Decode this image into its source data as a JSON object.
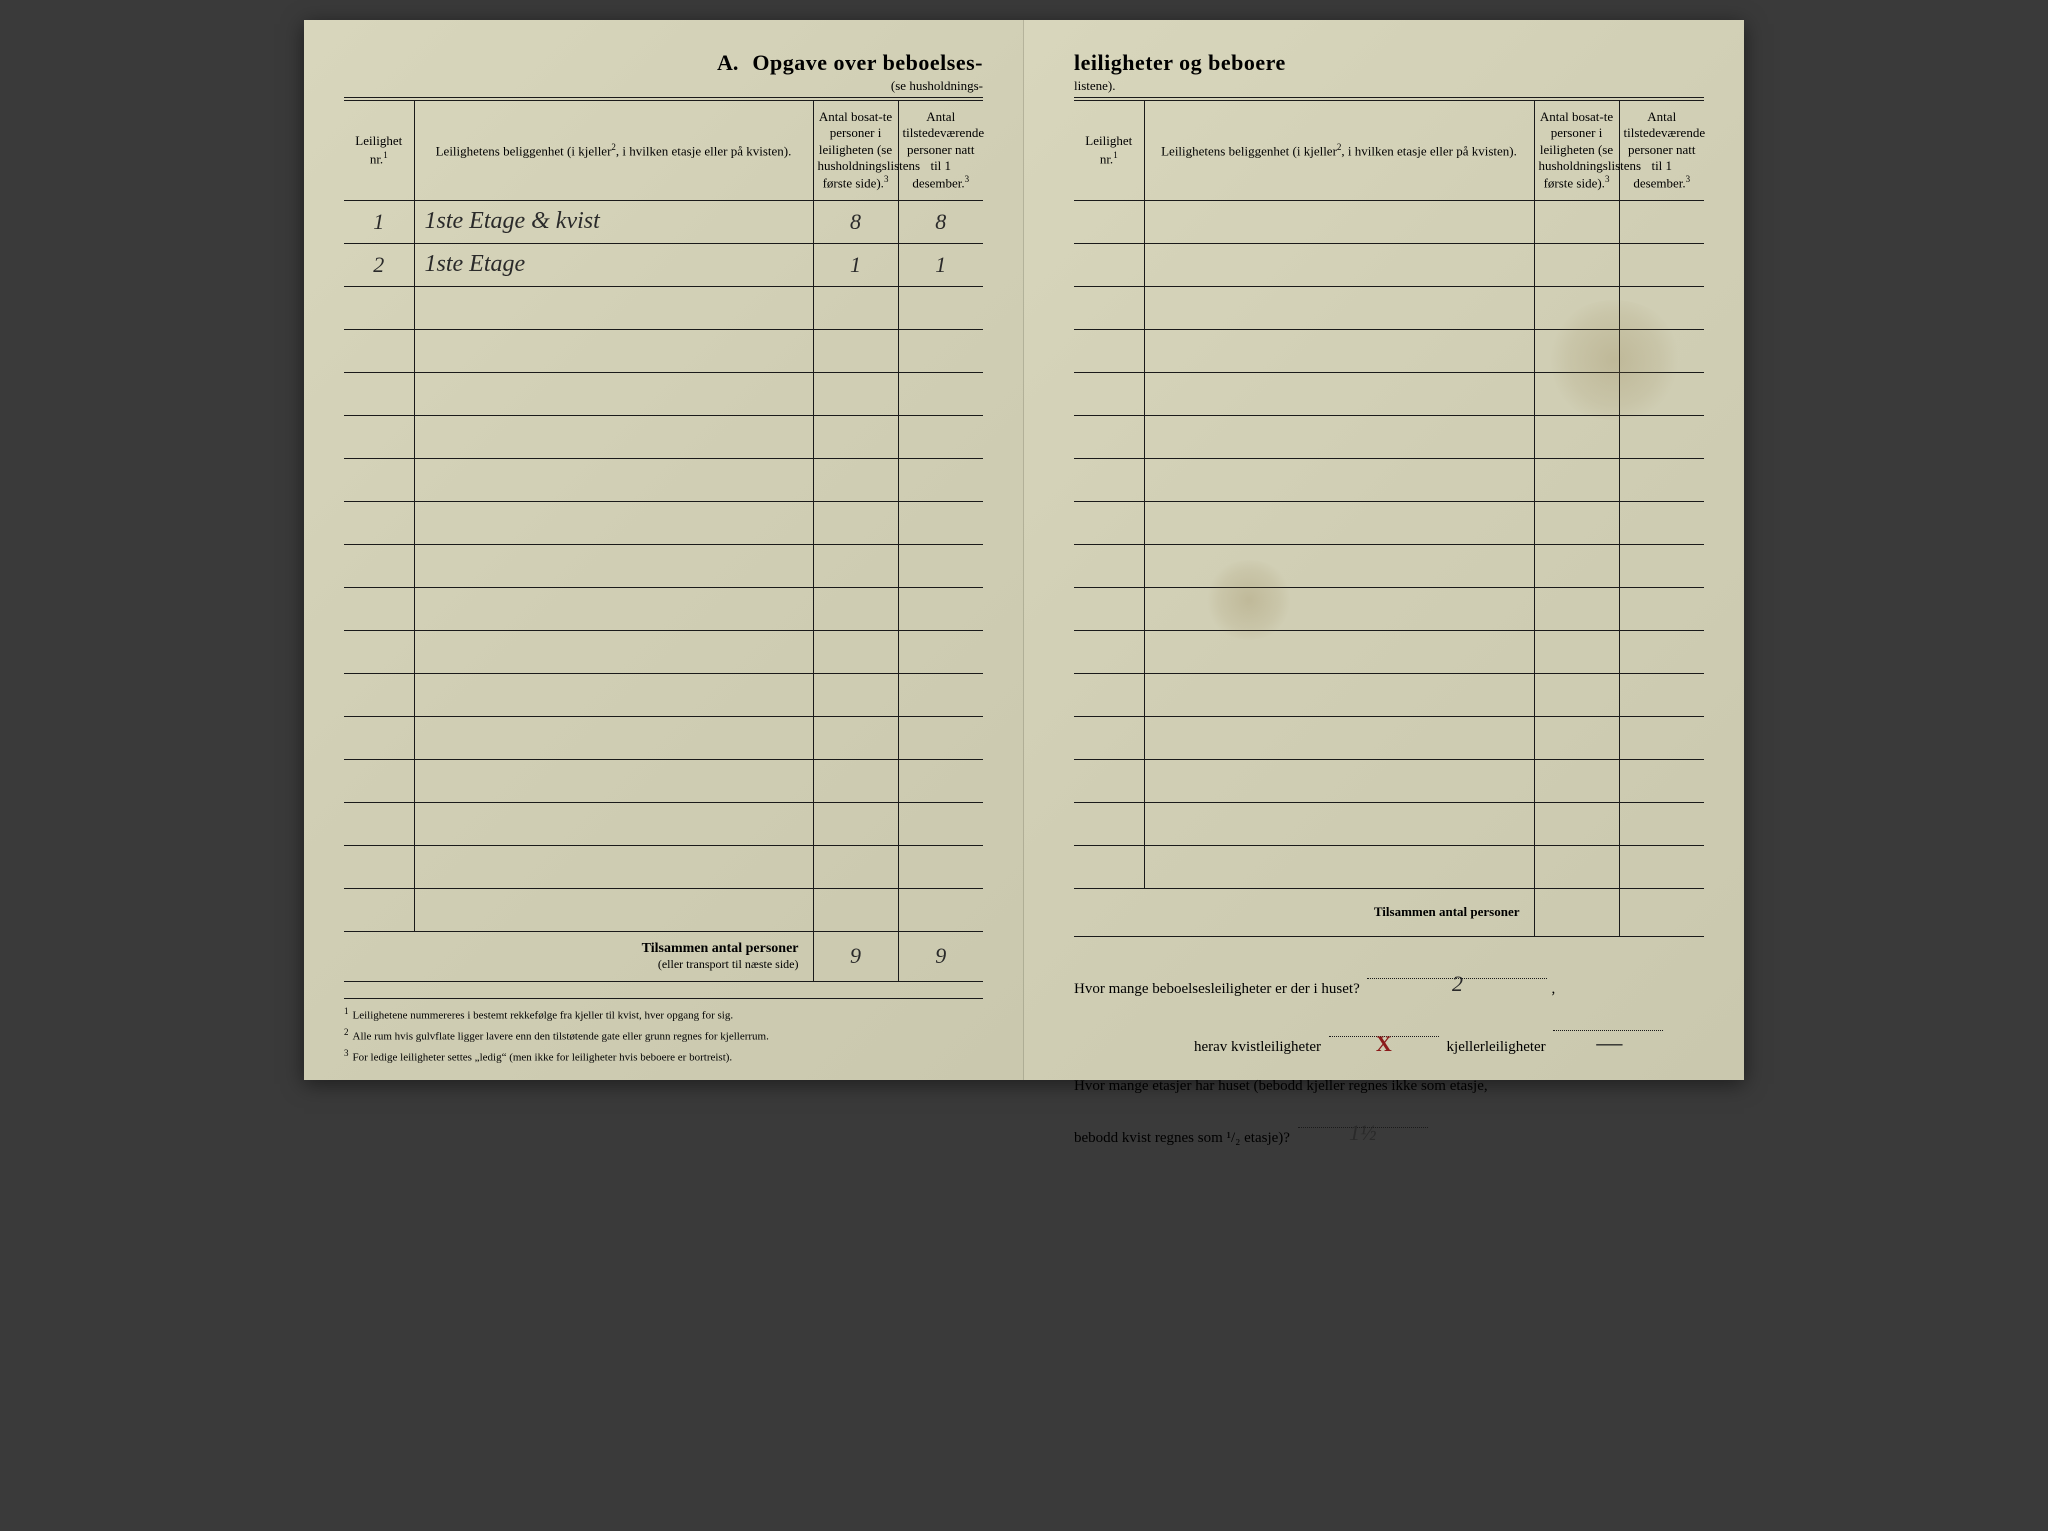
{
  "header": {
    "letter": "A.",
    "title_left": "Opgave over beboelses-",
    "subtitle_left": "(se husholdnings-",
    "title_right": "leiligheter og beboere",
    "subtitle_right": "listene)."
  },
  "columns": {
    "nr": "Leilighet nr.",
    "nr_sup": "1",
    "loc": "Leilighetens beliggenhet (i kjeller",
    "loc_sup": "2",
    "loc_after": ", i hvilken etasje eller på kvisten).",
    "n1": "Antal bosat-te personer i leiligheten (se husholdningslistens første side).",
    "n1_sup": "3",
    "n2": "Antal tilstedeværende personer natt til 1 desember.",
    "n2_sup": "3"
  },
  "rows_left": [
    {
      "nr": "1",
      "loc": "1ste Etage & kvist",
      "n1": "8",
      "n2": "8"
    },
    {
      "nr": "2",
      "loc": "1ste Etage",
      "n1": "1",
      "n2": "1"
    },
    {},
    {},
    {},
    {},
    {},
    {},
    {},
    {},
    {},
    {},
    {},
    {},
    {},
    {},
    {}
  ],
  "rows_right_count": 16,
  "totals_left": {
    "label_bold": "Tilsammen antal personer",
    "label_small": "(eller transport til næste side)",
    "n1": "9",
    "n2": "9"
  },
  "totals_right": {
    "label": "Tilsammen antal personer"
  },
  "footnotes": [
    {
      "n": "1",
      "text": "Leilighetene nummereres i bestemt rekkefølge fra kjeller til kvist, hver opgang for sig."
    },
    {
      "n": "2",
      "text": "Alle rum hvis gulvflate ligger lavere enn den tilstøtende gate eller grunn regnes for kjellerrum."
    },
    {
      "n": "3",
      "text": "For ledige leiligheter settes „ledig“ (men ikke for leiligheter hvis beboere er bortreist)."
    }
  ],
  "questions": {
    "q1_a": "Hvor mange beboelsesleiligheter er der i huset?",
    "q1_val": "2",
    "q2_a": "herav kvistleiligheter",
    "q2_val": "X",
    "q2_b": "kjellerleiligheter",
    "q2_val2": "—",
    "q3_a": "Hvor mange etasjer har huset (bebodd kjeller regnes ikke som etasje,",
    "q3_b": "bebodd kvist regnes som ¹/₂ etasje)?",
    "q3_val": "1½"
  }
}
